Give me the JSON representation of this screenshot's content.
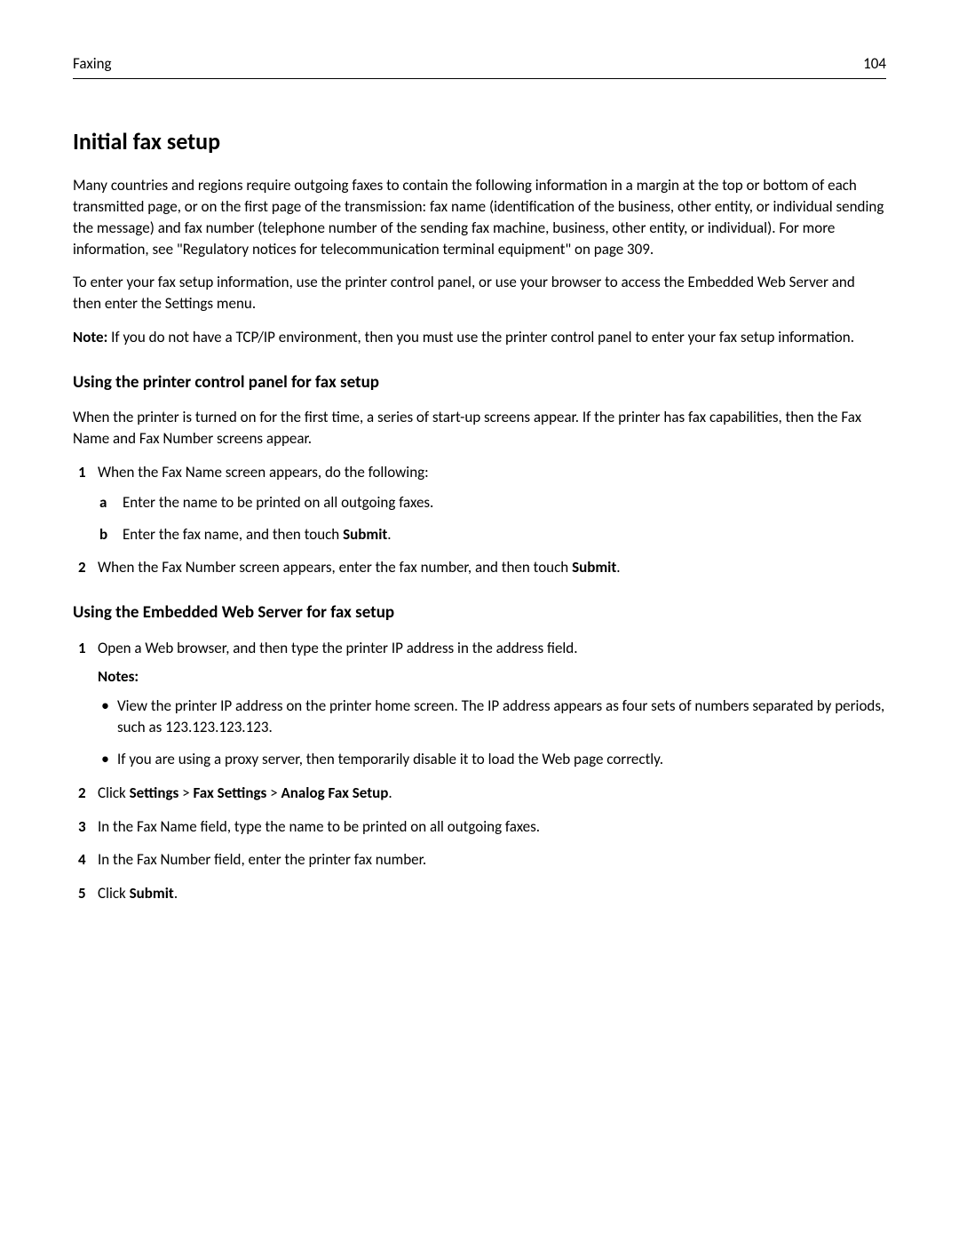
{
  "header": {
    "section": "Faxing",
    "page": "104"
  },
  "title": "Initial fax setup",
  "intro_para1": "Many countries and regions require outgoing faxes to contain the following information in a margin at the top or bottom of each transmitted page, or on the first page of the transmission: fax name (identification of the business, other entity, or individual sending the message) and fax number (telephone number of the sending fax machine, business, other entity, or individual). For more information, see \"Regulatory notices for telecommunication terminal equipment\" on page 309.",
  "intro_para2": "To enter your fax setup information, use the printer control panel, or use your browser to access the Embedded Web Server and then enter the Settings menu.",
  "note_label": "Note:",
  "note_text": " If you do not have a TCP/IP environment, then you must use the printer control panel to enter your fax setup information.",
  "section1": {
    "heading": "Using the printer control panel for fax setup",
    "para": "When the printer is turned on for the first time, a series of start-up screens appear. If the printer has fax capabilities, then the Fax Name and Fax Number screens appear.",
    "step1_text": "When the Fax Name screen appears, do the following:",
    "step1_a": "Enter the name to be printed on all outgoing faxes.",
    "step1_b_pre": "Enter the fax name, and then touch ",
    "step1_b_bold": "Submit",
    "step1_b_post": ".",
    "step2_pre": "When the Fax Number screen appears, enter the fax number, and then touch ",
    "step2_bold": "Submit",
    "step2_post": "."
  },
  "section2": {
    "heading": "Using the Embedded Web Server for fax setup",
    "step1": "Open a Web browser, and then type the printer IP address in the address field.",
    "notes_label": "Notes:",
    "bullet1": "View the printer IP address on the printer home screen. The IP address appears as four sets of numbers separated by periods, such as 123.123.123.123.",
    "bullet2": "If you are using a proxy server, then temporarily disable it to load the Web page correctly.",
    "step2_pre": "Click ",
    "step2_b1": "Settings",
    "step2_sep1": " > ",
    "step2_b2": "Fax Settings",
    "step2_sep2": " > ",
    "step2_b3": "Analog Fax Setup",
    "step2_post": ".",
    "step3": "In the Fax Name field, type the name to be printed on all outgoing faxes.",
    "step4": "In the Fax Number field, enter the printer fax number.",
    "step5_pre": "Click ",
    "step5_bold": "Submit",
    "step5_post": "."
  }
}
